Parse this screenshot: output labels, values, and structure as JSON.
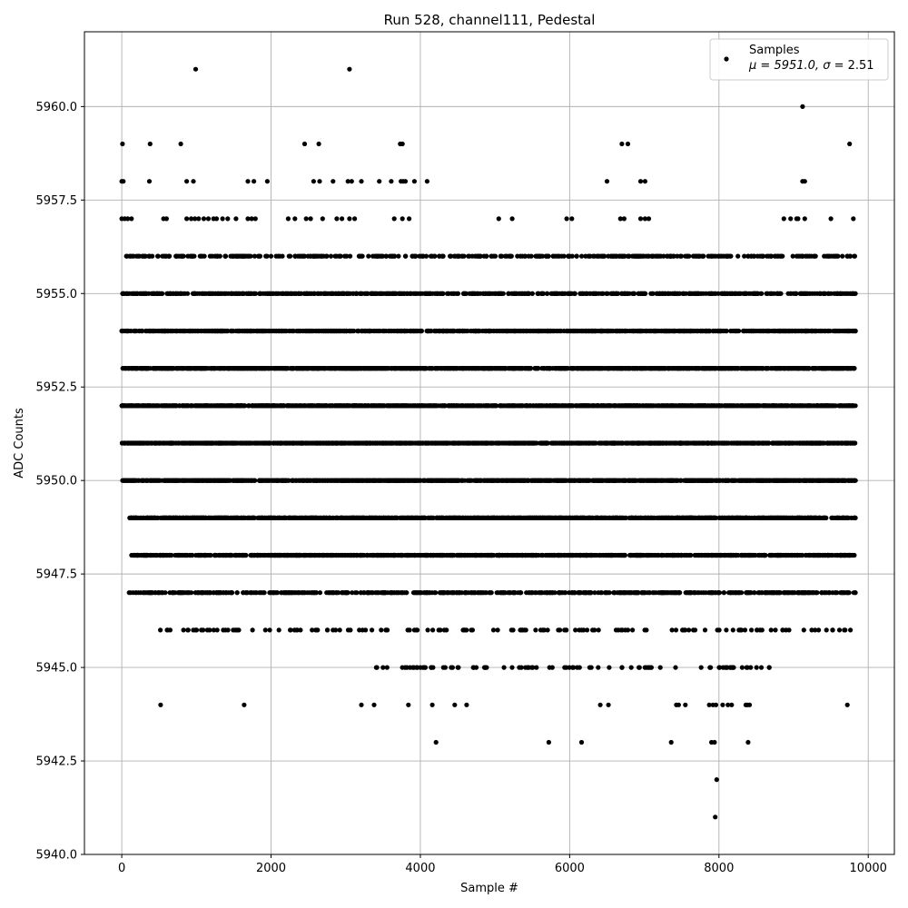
{
  "chart_data": {
    "type": "scatter",
    "title": "Run 528, channel111, Pedestal",
    "xlabel": "Sample #",
    "ylabel": "ADC Counts",
    "xlim": [
      -500,
      10350
    ],
    "ylim": [
      5940.0,
      5962.0
    ],
    "xticks": [
      0,
      2000,
      4000,
      6000,
      8000,
      10000
    ],
    "xtick_labels": [
      "0",
      "2000",
      "4000",
      "6000",
      "8000",
      "10000"
    ],
    "yticks": [
      5940.0,
      5942.5,
      5945.0,
      5947.5,
      5950.0,
      5952.5,
      5955.0,
      5957.5,
      5960.0
    ],
    "ytick_labels": [
      "5940.0",
      "5942.5",
      "5945.0",
      "5947.5",
      "5950.0",
      "5952.5",
      "5955.0",
      "5957.5",
      "5960.0"
    ],
    "grid": true,
    "legend": {
      "placement": "top-right",
      "entries": [
        {
          "name": "Samples",
          "stats_prefix": "μ = 5951.0, ",
          "stats_sigma": "σ",
          "stats_suffix": " = 2.51"
        }
      ]
    },
    "series": [
      {
        "name": "Samples",
        "color": "#000000",
        "x_range": [
          0,
          9830
        ],
        "n_samples": 9831,
        "mean": 5951.0,
        "sigma": 2.51,
        "levels": [
          {
            "y": 5941,
            "x": [
              7950
            ]
          },
          {
            "y": 5942,
            "x": [
              7970
            ]
          },
          {
            "y": 5943,
            "x": [
              4210,
              5720,
              6160,
              7360,
              7900,
              7940,
              8390
            ]
          },
          {
            "y": 5944,
            "x": [
              520,
              1640,
              3210,
              3380,
              3840,
              4160,
              4460,
              4620,
              6410,
              6520,
              7430,
              7460,
              7550,
              7870,
              7920,
              7960,
              8050,
              8120,
              8170,
              8360,
              8380,
              8410,
              9720
            ]
          },
          {
            "y": 5945,
            "range": [
              3400,
              8700
            ],
            "count": 90,
            "seed": 101
          },
          {
            "y": 5946,
            "range": [
              460,
              9800
            ],
            "count": 150,
            "seed": 102
          },
          {
            "y": 5947,
            "range": [
              80,
              9830
            ],
            "count": 700,
            "seed": 103
          },
          {
            "y": 5948,
            "range": [
              110,
              9830
            ],
            "count": 1100,
            "seed": 104
          },
          {
            "y": 5949,
            "range": [
              80,
              9830
            ],
            "count": 1300,
            "seed": 105
          },
          {
            "y": 5950,
            "range": [
              0,
              9830
            ],
            "count": 1600,
            "seed": 106
          },
          {
            "y": 5951,
            "range": [
              0,
              9830
            ],
            "count": 1700,
            "seed": 107
          },
          {
            "y": 5952,
            "range": [
              0,
              9830
            ],
            "count": 1600,
            "seed": 108
          },
          {
            "y": 5953,
            "range": [
              0,
              9830
            ],
            "count": 1300,
            "seed": 109
          },
          {
            "y": 5954,
            "range": [
              0,
              9830
            ],
            "count": 1100,
            "seed": 110
          },
          {
            "y": 5955,
            "range": [
              0,
              9830
            ],
            "count": 800,
            "seed": 111
          },
          {
            "y": 5956,
            "range": [
              0,
              9830
            ],
            "count": 420,
            "seed": 112
          },
          {
            "y": 5957,
            "x": [
              0,
              40,
              80,
              130,
              560,
              600,
              870,
              930,
              980,
              1030,
              1100,
              1160,
              1230,
              1270,
              1350,
              1420,
              1530,
              1690,
              1740,
              1790,
              2230,
              2320,
              2470,
              2530,
              2690,
              2880,
              2950,
              3050,
              3120,
              3650,
              3760,
              3850,
              5050,
              5230,
              5960,
              6030,
              6680,
              6730,
              6950,
              7010,
              7060,
              8870,
              8960,
              9040,
              9060,
              9150,
              9500,
              9800
            ]
          },
          {
            "y": 5958,
            "x": [
              0,
              20,
              370,
              870,
              960,
              1690,
              1770,
              1950,
              2570,
              2650,
              2830,
              3030,
              3080,
              3210,
              3450,
              3610,
              3740,
              3770,
              3800,
              3920,
              4090,
              6500,
              6950,
              7010,
              9120,
              9150
            ]
          },
          {
            "y": 5959,
            "x": [
              10,
              380,
              790,
              2450,
              2640,
              3730,
              3760,
              6700,
              6780,
              9750
            ]
          },
          {
            "y": 5960,
            "x": [
              9120
            ]
          },
          {
            "y": 5961,
            "x": [
              990,
              3050
            ]
          }
        ]
      }
    ]
  }
}
